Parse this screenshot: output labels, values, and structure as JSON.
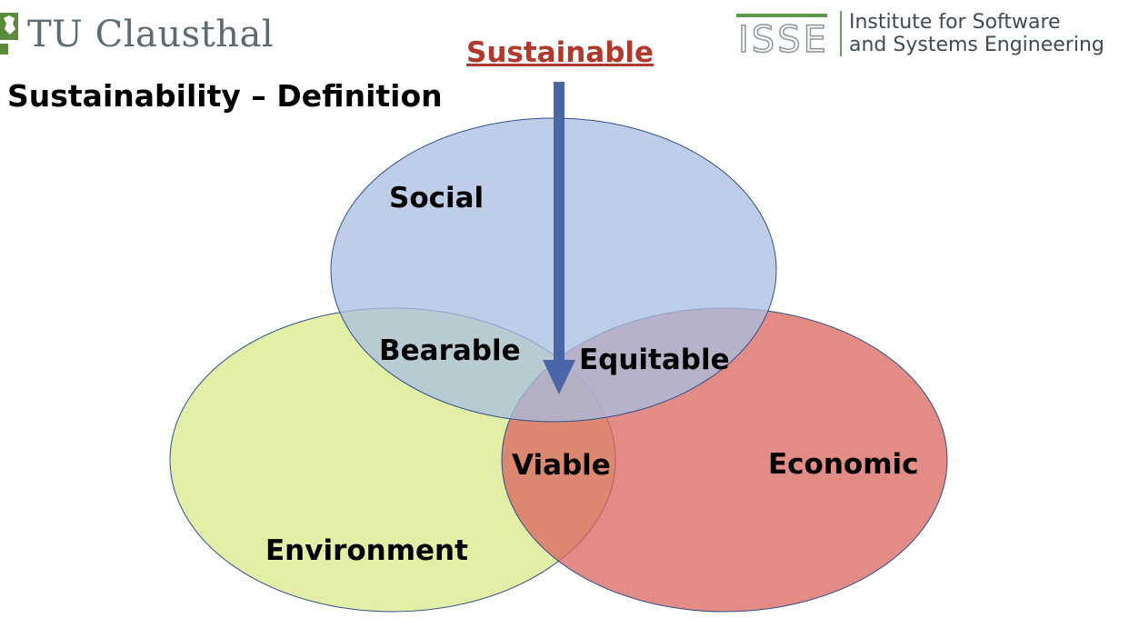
{
  "header": {
    "university_logo_text": "TU Clausthal",
    "institute_logo_mark": "ISSE",
    "institute_name_line1": "Institute for Software",
    "institute_name_line2": "and Systems Engineering"
  },
  "slide": {
    "title": "Sustainability – Definition"
  },
  "diagram": {
    "top_label": "Sustainable",
    "circles": {
      "social": "Social",
      "environment": "Environment",
      "economic": "Economic"
    },
    "overlaps": {
      "social_environment": "Bearable",
      "social_economic": "Equitable",
      "environment_economic": "Viable"
    },
    "colors": {
      "social": "#a9bde0",
      "environment": "#d9ea88",
      "economic": "#d9665e",
      "arrow": "#4a66a8",
      "sustainable_text": "#b0392c"
    }
  }
}
